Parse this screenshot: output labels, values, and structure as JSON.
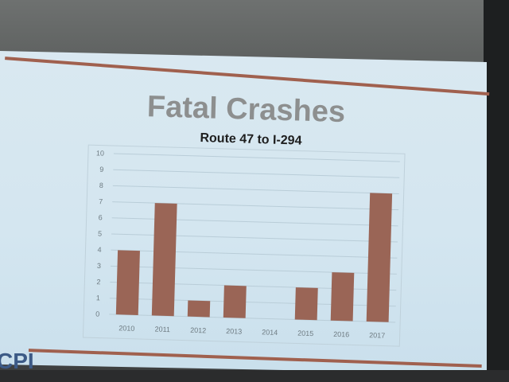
{
  "slide": {
    "title": "Fatal Crashes",
    "subtitle": "Route 47 to I-294",
    "logo_text": "CPI",
    "accent_color": "#a0604e",
    "bar_color": "#9a6556"
  },
  "chart_data": {
    "type": "bar",
    "title": "Fatal Crashes",
    "subtitle": "Route 47 to I-294",
    "categories": [
      "2010",
      "2011",
      "2012",
      "2013",
      "2014",
      "2015",
      "2016",
      "2017"
    ],
    "values": [
      4,
      7,
      1,
      2,
      0,
      2,
      3,
      8
    ],
    "yticks": [
      "0",
      "1",
      "2",
      "3",
      "4",
      "5",
      "6",
      "7",
      "8",
      "9",
      "10"
    ],
    "ylim": [
      0,
      10
    ],
    "xlabel": "",
    "ylabel": "",
    "grid": true,
    "legend": "none"
  }
}
